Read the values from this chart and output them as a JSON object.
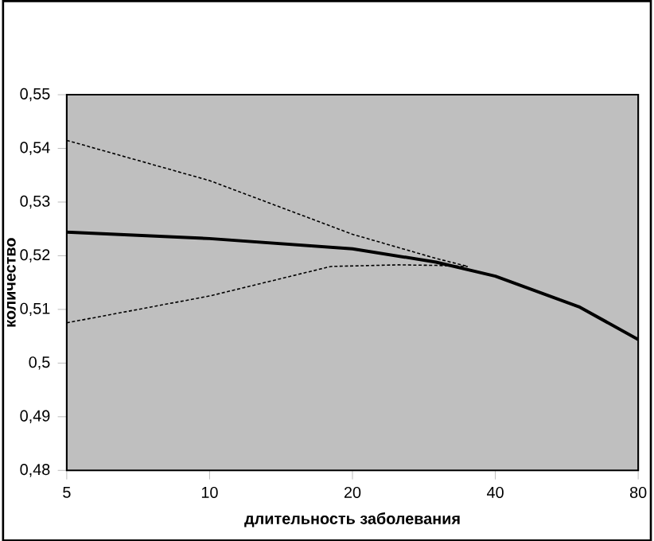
{
  "chart_data": {
    "type": "line",
    "xlabel": "длительность заболевания",
    "ylabel": "количество",
    "log": "x",
    "xlim": [
      5,
      80
    ],
    "xticks": [
      5,
      10,
      20,
      40,
      80
    ],
    "ylim": [
      0.48,
      0.55
    ],
    "yticks": [
      {
        "value": 0.48,
        "label": "0,48"
      },
      {
        "value": 0.49,
        "label": "0,49"
      },
      {
        "value": 0.5,
        "label": "0,5"
      },
      {
        "value": 0.51,
        "label": "0,51"
      },
      {
        "value": 0.52,
        "label": "0,52"
      },
      {
        "value": 0.53,
        "label": "0,53"
      },
      {
        "value": 0.54,
        "label": "0,54"
      },
      {
        "value": 0.55,
        "label": "0,55"
      }
    ],
    "series": [
      {
        "color": "#000000",
        "line_style": "solid",
        "x": [
          5,
          10,
          20,
          30,
          40,
          60,
          80
        ],
        "values": [
          0.5244,
          0.5232,
          0.5213,
          0.5188,
          0.5162,
          0.5105,
          0.5044
        ]
      },
      {
        "color": "#000000",
        "line_style": "dashed",
        "x": [
          5,
          10,
          20,
          30,
          35
        ],
        "values": [
          0.5415,
          0.534,
          0.524,
          0.5195,
          0.518
        ]
      },
      {
        "color": "#000000",
        "line_style": "dashed",
        "x": [
          5,
          10,
          18,
          25,
          30,
          35
        ],
        "values": [
          0.5075,
          0.5125,
          0.518,
          0.5183,
          0.5182,
          0.518
        ]
      }
    ]
  }
}
